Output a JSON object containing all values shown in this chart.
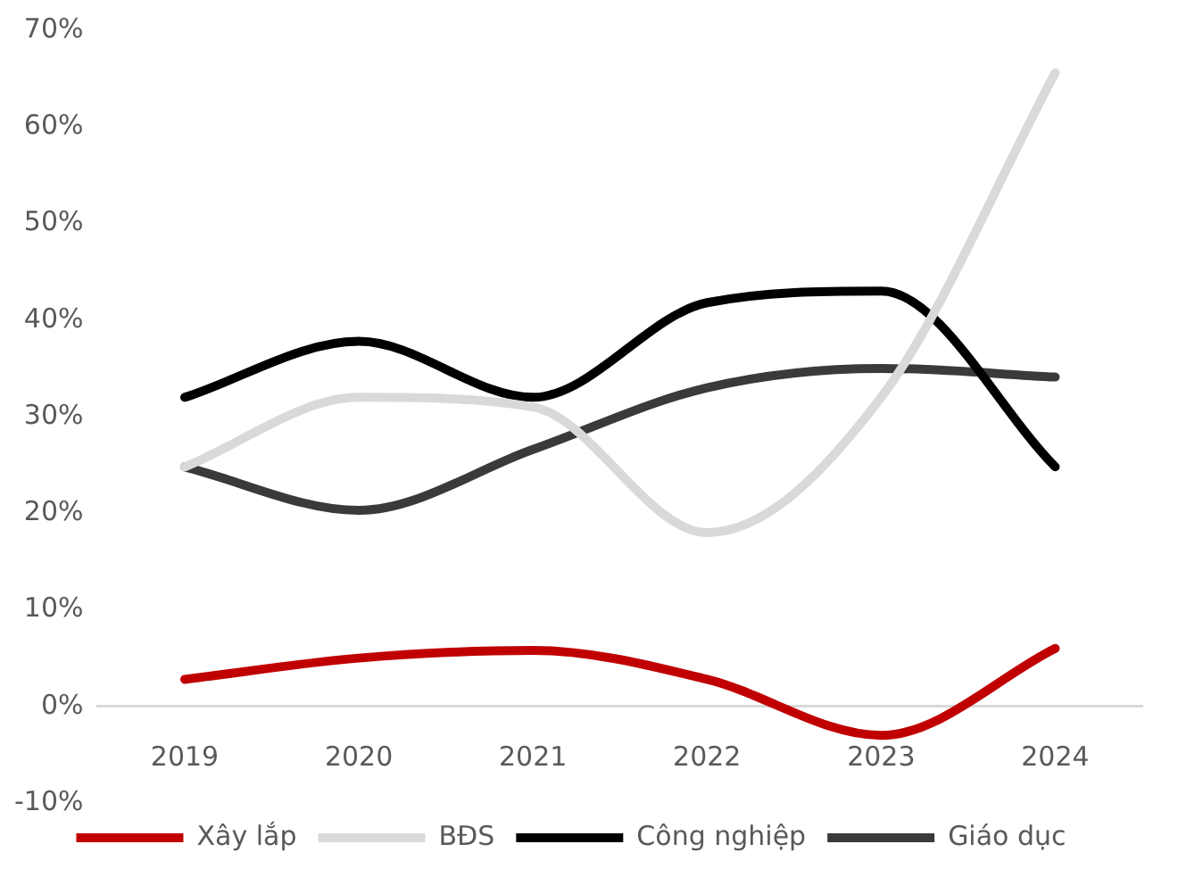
{
  "chart_data": {
    "type": "line",
    "categories": [
      "2019",
      "2020",
      "2021",
      "2022",
      "2023",
      "2024"
    ],
    "series": [
      {
        "name": "Xây lắp",
        "color": "#c00000",
        "values": [
          2.8,
          5,
          5.8,
          2.8,
          -3,
          6
        ]
      },
      {
        "name": "BĐS",
        "color": "#d9d9d9",
        "values": [
          24.8,
          32,
          31,
          18,
          32,
          65.6
        ]
      },
      {
        "name": "Công nghiệp",
        "color": "#000000",
        "values": [
          32,
          37.8,
          32,
          41.8,
          43,
          24.8
        ]
      },
      {
        "name": "Giáo dục",
        "color": "#3a3a3a",
        "values": [
          24.8,
          20.3,
          26.6,
          33,
          35,
          34.1
        ]
      }
    ],
    "ylim": [
      -10,
      70
    ],
    "yticks": [
      {
        "value": -10,
        "label": "-10%"
      },
      {
        "value": 0,
        "label": "0%"
      },
      {
        "value": 10,
        "label": "10%"
      },
      {
        "value": 20,
        "label": "20%"
      },
      {
        "value": 30,
        "label": "30%"
      },
      {
        "value": 40,
        "label": "40%"
      },
      {
        "value": 50,
        "label": "50%"
      },
      {
        "value": 60,
        "label": "60%"
      },
      {
        "value": 70,
        "label": "70%"
      }
    ],
    "grid": false,
    "legend": "bottom",
    "marker": "none",
    "line_style": "solid"
  }
}
